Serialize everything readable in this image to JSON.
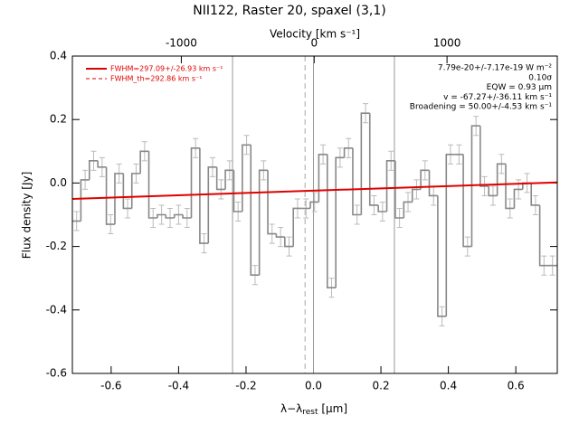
{
  "chart_data": {
    "type": "histogram",
    "title": "NII122, Raster 20, spaxel (3,1)",
    "x_label": "λ−λ",
    "x_label_sub": "rest",
    "x_label_unit": " [μm]",
    "x2_label": "Velocity [km s⁻¹]",
    "y_label": "Flux density [Jy]",
    "xlim": [
      -0.715,
      0.723
    ],
    "ylim": [
      -0.6,
      0.4
    ],
    "x2lim": [
      -1820,
      1830
    ],
    "xticks": [
      -0.6,
      -0.4,
      -0.2,
      {
        "value": 0,
        "label": "0.0"
      },
      0.2,
      0.4,
      0.6
    ],
    "yticks": [
      -0.6,
      -0.4,
      -0.2,
      {
        "value": 0,
        "label": "0.0"
      },
      0.2,
      0.4
    ],
    "x2ticks": [
      -1000,
      0,
      1000
    ],
    "bins": [
      -0.715,
      -0.6898,
      -0.6646,
      -0.6394,
      -0.6142,
      -0.589,
      -0.5638,
      -0.5386,
      -0.5134,
      -0.4882,
      -0.463,
      -0.4378,
      -0.4126,
      -0.3874,
      -0.3622,
      -0.337,
      -0.3118,
      -0.2866,
      -0.2614,
      -0.2362,
      -0.211,
      -0.1858,
      -0.1606,
      -0.1354,
      -0.1102,
      -0.085,
      -0.0598,
      -0.0346,
      -0.0094,
      0.0158,
      0.041,
      0.0662,
      0.0914,
      0.1166,
      0.1418,
      0.167,
      0.1922,
      0.2174,
      0.2426,
      0.2678,
      0.293,
      0.3182,
      0.3434,
      0.3686,
      0.3938,
      0.419,
      0.4442,
      0.4694,
      0.4946,
      0.5198,
      0.545,
      0.5702,
      0.5954,
      0.6206,
      0.6458,
      0.671,
      0.6962,
      0.7214
    ],
    "values": [
      -0.12,
      0.01,
      0.07,
      0.05,
      -0.13,
      0.03,
      -0.08,
      0.03,
      0.1,
      -0.11,
      -0.1,
      -0.11,
      -0.1,
      -0.11,
      0.11,
      -0.19,
      0.05,
      -0.02,
      0.04,
      -0.09,
      0.12,
      -0.29,
      0.04,
      -0.16,
      -0.17,
      -0.2,
      -0.08,
      -0.08,
      -0.06,
      0.09,
      -0.33,
      0.08,
      0.11,
      -0.1,
      0.22,
      -0.07,
      -0.09,
      0.07,
      -0.11,
      -0.06,
      -0.02,
      0.04,
      -0.04,
      -0.42,
      0.09,
      0.09,
      -0.2,
      0.18,
      -0.01,
      -0.04,
      0.06,
      -0.08,
      -0.02,
      0.0,
      -0.07,
      -0.26,
      -0.26
    ],
    "errors": [
      0.03,
      0.03,
      0.03,
      0.03,
      0.03,
      0.03,
      0.03,
      0.03,
      0.03,
      0.03,
      0.03,
      0.03,
      0.03,
      0.03,
      0.03,
      0.03,
      0.03,
      0.03,
      0.03,
      0.03,
      0.03,
      0.03,
      0.03,
      0.03,
      0.03,
      0.03,
      0.03,
      0.03,
      0.03,
      0.03,
      0.03,
      0.03,
      0.03,
      0.03,
      0.03,
      0.03,
      0.03,
      0.03,
      0.03,
      0.03,
      0.03,
      0.03,
      0.03,
      0.03,
      0.03,
      0.03,
      0.03,
      0.03,
      0.03,
      0.03,
      0.03,
      0.03,
      0.03,
      0.03,
      0.03,
      0.03,
      0.03
    ],
    "color": "#888888",
    "error_color": "#bbbbbb",
    "fit": {
      "name": "FWHM=297.09+/-26.93 km s⁻¹",
      "color": "#e00000",
      "x": [
        -0.715,
        0.723
      ],
      "values": [
        -0.05,
        0.002
      ]
    },
    "fit_th_name": "FWHM_th=292.86 km s⁻¹",
    "vlines": [
      -0.24,
      0,
      0.24
    ],
    "vline_dashed": -0.025,
    "annotations": [
      "7.79e-20+/-7.17e-19 W m⁻²",
      "0.10σ",
      "EQW = 0.93 μm",
      "v = -67.27+/-36.11 km s⁻¹",
      "Broadening = 50.00+/-4.53 km s⁻¹"
    ]
  }
}
